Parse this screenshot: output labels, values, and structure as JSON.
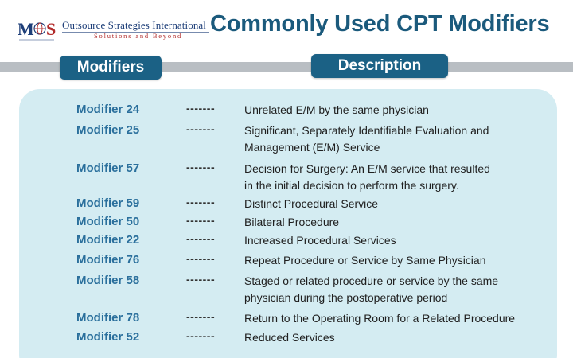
{
  "header": {
    "logo": {
      "letters": "MSS",
      "company_name": "Outsource Strategies International",
      "tagline": "Solutions and Beyond"
    },
    "title": "Commonly Used CPT Modifiers"
  },
  "columns": {
    "modifiers": "Modifiers",
    "description": "Description"
  },
  "separator": "-------",
  "rows": [
    {
      "modifier": "Modifier 24",
      "lines": [
        "Unrelated E/M by the same physician"
      ]
    },
    {
      "modifier": "Modifier 25",
      "lines": [
        "Significant, Separately Identifiable Evaluation and",
        "Management (E/M) Service"
      ]
    },
    {
      "modifier": "Modifier 57",
      "lines": [
        "Decision for Surgery: An E/M service that resulted",
        "in the initial decision to perform the surgery."
      ]
    },
    {
      "modifier": "Modifier 59",
      "lines": [
        "Distinct Procedural Service"
      ]
    },
    {
      "modifier": "Modifier 50",
      "lines": [
        "Bilateral Procedure"
      ]
    },
    {
      "modifier": "Modifier 22",
      "lines": [
        "Increased Procedural Services"
      ]
    },
    {
      "modifier": "Modifier 76",
      "lines": [
        "Repeat Procedure or Service by Same Physician"
      ]
    },
    {
      "modifier": "Modifier 58",
      "lines": [
        "Staged or related procedure or service by the same",
        "physician during the postoperative period"
      ]
    },
    {
      "modifier": "Modifier 78",
      "lines": [
        "Return to the Operating Room for a Related Procedure"
      ]
    },
    {
      "modifier": "Modifier 52",
      "lines": [
        "Reduced Services"
      ]
    }
  ],
  "colors": {
    "title": "#1b5a7c",
    "header_pill": "#1b6185",
    "modifier_text": "#2a6f9c",
    "panel": "#d4ecf2",
    "band": "#b9bec3"
  }
}
